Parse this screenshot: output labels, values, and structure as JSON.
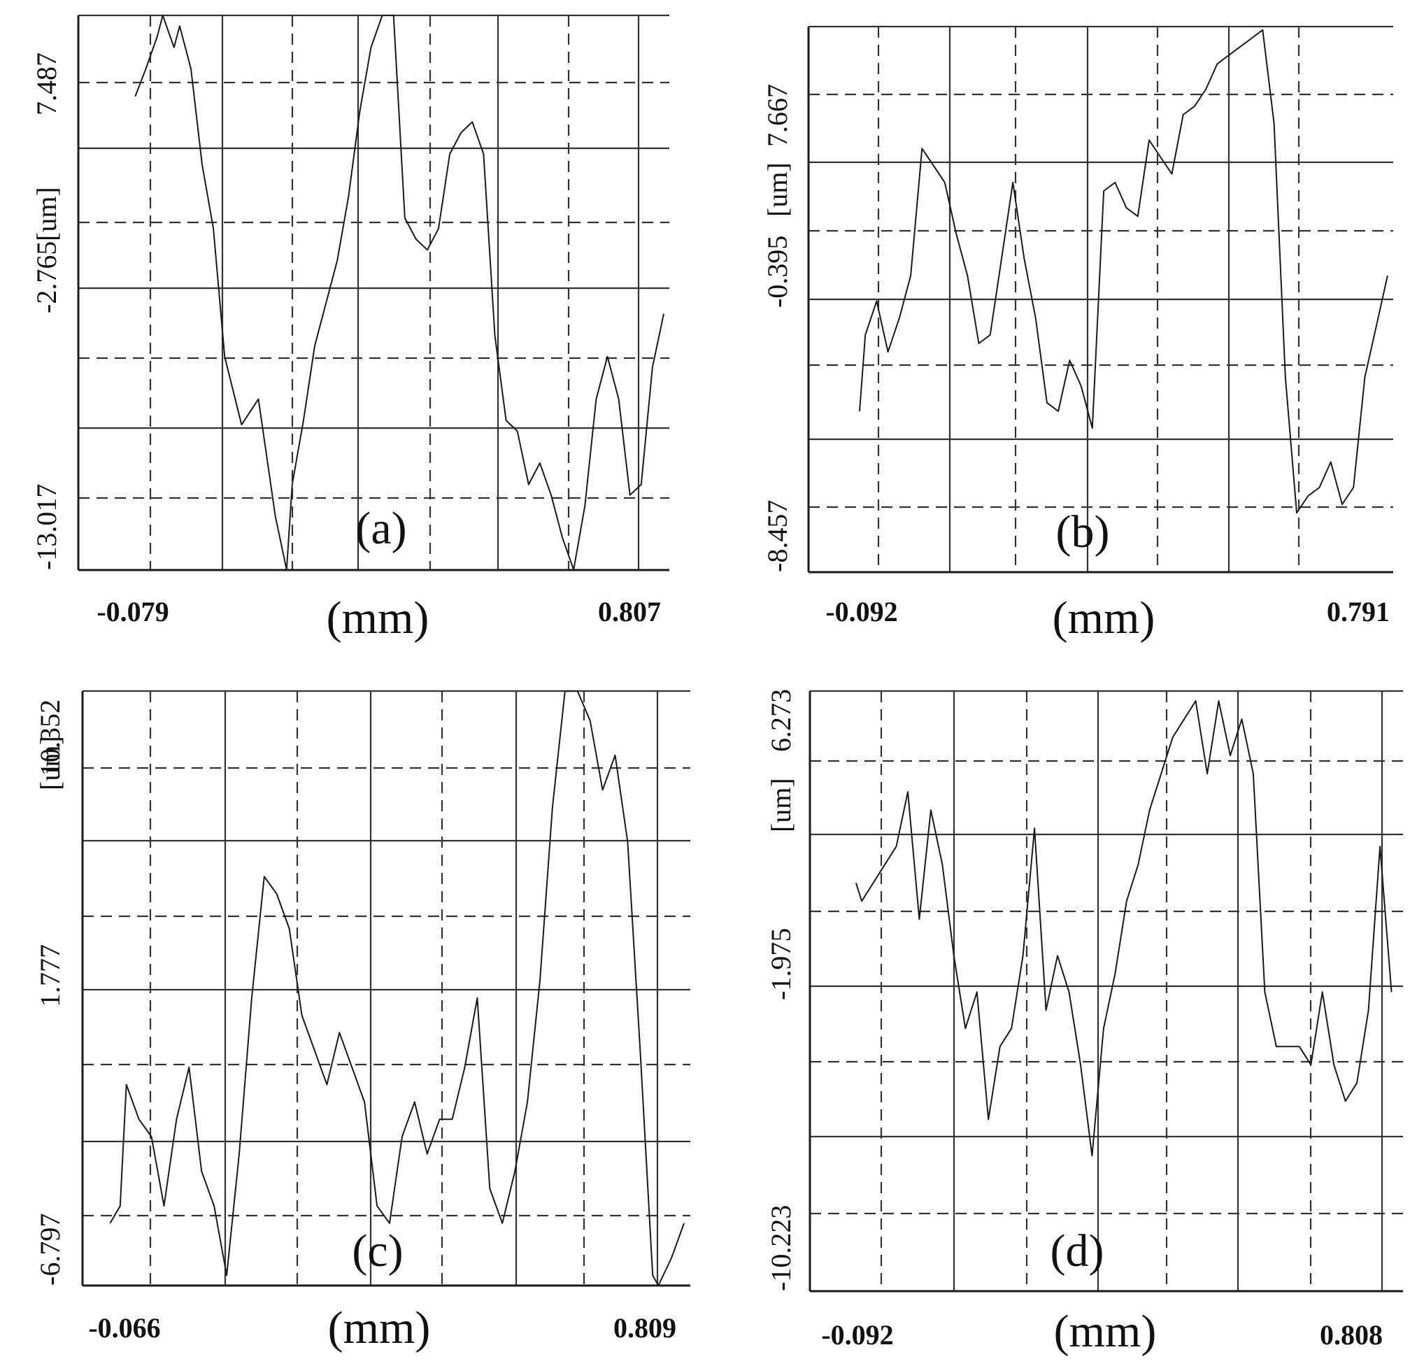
{
  "chart_data": [
    {
      "type": "line",
      "panel_label": "(a)",
      "xlabel": "(mm)",
      "y_unit": "[um]",
      "x_tick_labels": [
        "-0.079",
        "0.807"
      ],
      "y_tick_labels": [
        "-13.017",
        "-2.765",
        "7.487"
      ],
      "xlim": [
        -0.18,
        0.87
      ],
      "ylim": [
        -13.017,
        13.0
      ],
      "grid": true,
      "series": [
        {
          "x": [
            -0.079,
            -0.06,
            -0.04,
            -0.03,
            -0.01,
            0.0,
            0.02,
            0.04,
            0.06,
            0.08,
            0.11,
            0.14,
            0.17,
            0.19,
            0.2,
            0.22,
            0.24,
            0.26,
            0.28,
            0.3,
            0.32,
            0.34,
            0.36,
            0.38,
            0.4,
            0.42,
            0.44,
            0.46,
            0.48,
            0.5,
            0.52,
            0.54,
            0.56,
            0.58,
            0.6,
            0.62,
            0.64,
            0.66,
            0.68,
            0.7,
            0.72,
            0.74,
            0.76,
            0.78,
            0.8,
            0.82,
            0.84,
            0.86
          ],
          "y": [
            9.2,
            10.5,
            12.0,
            13.0,
            11.5,
            12.5,
            10.5,
            6.0,
            3.0,
            -3.0,
            -6.2,
            -5.0,
            -10.5,
            -13.0,
            -9.0,
            -6.0,
            -2.5,
            -0.5,
            1.5,
            4.5,
            8.5,
            11.5,
            13.0,
            13.0,
            3.5,
            2.5,
            2.0,
            3.0,
            6.5,
            7.5,
            8.0,
            6.5,
            -2.0,
            -6.0,
            -6.5,
            -9.0,
            -8.0,
            -9.5,
            -11.5,
            -13.0,
            -10.0,
            -5.0,
            -3.0,
            -5.0,
            -9.5,
            -9.0,
            -3.5,
            -1.0
          ]
        }
      ]
    },
    {
      "type": "line",
      "panel_label": "(b)",
      "xlabel": "(mm)",
      "y_unit": "[um]",
      "x_tick_labels": [
        "-0.092",
        "0.791"
      ],
      "y_tick_labels": [
        "-8.457",
        "-0.395",
        "7.667"
      ],
      "xlim": [
        -0.19,
        0.84
      ],
      "ylim": [
        -16.5,
        15.7
      ],
      "grid": true,
      "series": [
        {
          "x": [
            -0.1,
            -0.09,
            -0.07,
            -0.05,
            -0.03,
            -0.01,
            0.01,
            0.03,
            0.05,
            0.07,
            0.09,
            0.11,
            0.13,
            0.15,
            0.17,
            0.19,
            0.21,
            0.23,
            0.25,
            0.27,
            0.29,
            0.31,
            0.33,
            0.35,
            0.37,
            0.39,
            0.41,
            0.43,
            0.45,
            0.47,
            0.49,
            0.51,
            0.53,
            0.55,
            0.57,
            0.59,
            0.61,
            0.63,
            0.65,
            0.67,
            0.69,
            0.71,
            0.73,
            0.75,
            0.77,
            0.79,
            0.81,
            0.83
          ],
          "y": [
            -7.0,
            -2.5,
            -0.5,
            -3.5,
            -1.5,
            1.0,
            8.5,
            7.5,
            6.5,
            3.5,
            1.0,
            -3.0,
            -2.5,
            2.0,
            6.5,
            2.0,
            -1.5,
            -6.5,
            -7.0,
            -4.0,
            -5.5,
            -8.0,
            6.0,
            6.5,
            5.0,
            4.5,
            9.0,
            8.0,
            7.0,
            10.5,
            11.0,
            12.0,
            13.5,
            14.0,
            14.5,
            15.0,
            15.5,
            10.0,
            -5.0,
            -13.0,
            -12.0,
            -11.5,
            -10.0,
            -12.5,
            -11.5,
            -5.0,
            -2.0,
            1.0
          ]
        }
      ]
    },
    {
      "type": "line",
      "panel_label": "(c)",
      "xlabel": "(mm)",
      "y_unit": "[um]",
      "x_tick_labels": [
        "-0.066",
        "0.809"
      ],
      "y_tick_labels": [
        "-6.797",
        "1.777",
        "10.352"
      ],
      "xlim": [
        -0.11,
        0.86
      ],
      "ylim": [
        -6.797,
        10.352
      ],
      "grid": true,
      "series": [
        {
          "x": [
            -0.066,
            -0.05,
            -0.04,
            -0.02,
            0.0,
            0.02,
            0.04,
            0.06,
            0.08,
            0.1,
            0.12,
            0.14,
            0.16,
            0.18,
            0.2,
            0.22,
            0.24,
            0.26,
            0.28,
            0.3,
            0.32,
            0.34,
            0.36,
            0.38,
            0.4,
            0.42,
            0.44,
            0.46,
            0.48,
            0.5,
            0.52,
            0.54,
            0.56,
            0.58,
            0.6,
            0.62,
            0.64,
            0.66,
            0.68,
            0.7,
            0.72,
            0.74,
            0.76,
            0.78,
            0.8,
            0.809,
            0.83,
            0.85
          ],
          "y": [
            -5.0,
            -4.5,
            -1.0,
            -2.0,
            -2.5,
            -4.5,
            -2.0,
            -0.5,
            -3.5,
            -4.5,
            -6.5,
            -3.0,
            1.5,
            5.0,
            4.5,
            3.5,
            1.0,
            0.0,
            -1.0,
            0.5,
            -0.5,
            -1.5,
            -4.5,
            -5.0,
            -2.5,
            -1.5,
            -3.0,
            -2.0,
            -2.0,
            -0.5,
            1.5,
            -4.0,
            -5.0,
            -3.5,
            -1.5,
            2.0,
            7.0,
            10.35,
            10.35,
            9.5,
            7.5,
            8.5,
            6.0,
            0.0,
            -6.5,
            -6.8,
            -6.0,
            -5.0
          ]
        }
      ]
    },
    {
      "type": "line",
      "panel_label": "(d)",
      "xlabel": "(mm)",
      "y_unit": "[um]",
      "x_tick_labels": [
        "-0.092",
        "0.808"
      ],
      "y_tick_labels": [
        "-10.223",
        "-1.975",
        "6.273"
      ],
      "xlim": [
        -0.18,
        0.85
      ],
      "ylim": [
        -10.223,
        6.273
      ],
      "grid": true,
      "series": [
        {
          "x": [
            -0.1,
            -0.09,
            -0.07,
            -0.05,
            -0.03,
            -0.01,
            0.01,
            0.03,
            0.05,
            0.07,
            0.09,
            0.11,
            0.13,
            0.15,
            0.17,
            0.19,
            0.21,
            0.23,
            0.25,
            0.27,
            0.29,
            0.31,
            0.33,
            0.35,
            0.37,
            0.39,
            0.41,
            0.43,
            0.45,
            0.47,
            0.49,
            0.51,
            0.53,
            0.55,
            0.57,
            0.59,
            0.61,
            0.63,
            0.65,
            0.67,
            0.69,
            0.71,
            0.73,
            0.75,
            0.77,
            0.79,
            0.81,
            0.83
          ],
          "y": [
            1.0,
            0.5,
            1.0,
            1.5,
            2.0,
            3.5,
            0.0,
            3.0,
            1.5,
            -1.0,
            -3.0,
            -2.0,
            -5.5,
            -3.5,
            -3.0,
            -1.0,
            2.5,
            -2.5,
            -1.0,
            -2.0,
            -4.0,
            -6.5,
            -3.0,
            -1.5,
            0.5,
            1.5,
            3.0,
            4.0,
            5.0,
            5.5,
            6.0,
            4.0,
            6.0,
            4.5,
            5.5,
            4.0,
            -2.0,
            -3.5,
            -3.5,
            -3.5,
            -4.0,
            -2.0,
            -4.0,
            -5.0,
            -4.5,
            -2.5,
            2.0,
            -2.0
          ]
        }
      ]
    }
  ]
}
